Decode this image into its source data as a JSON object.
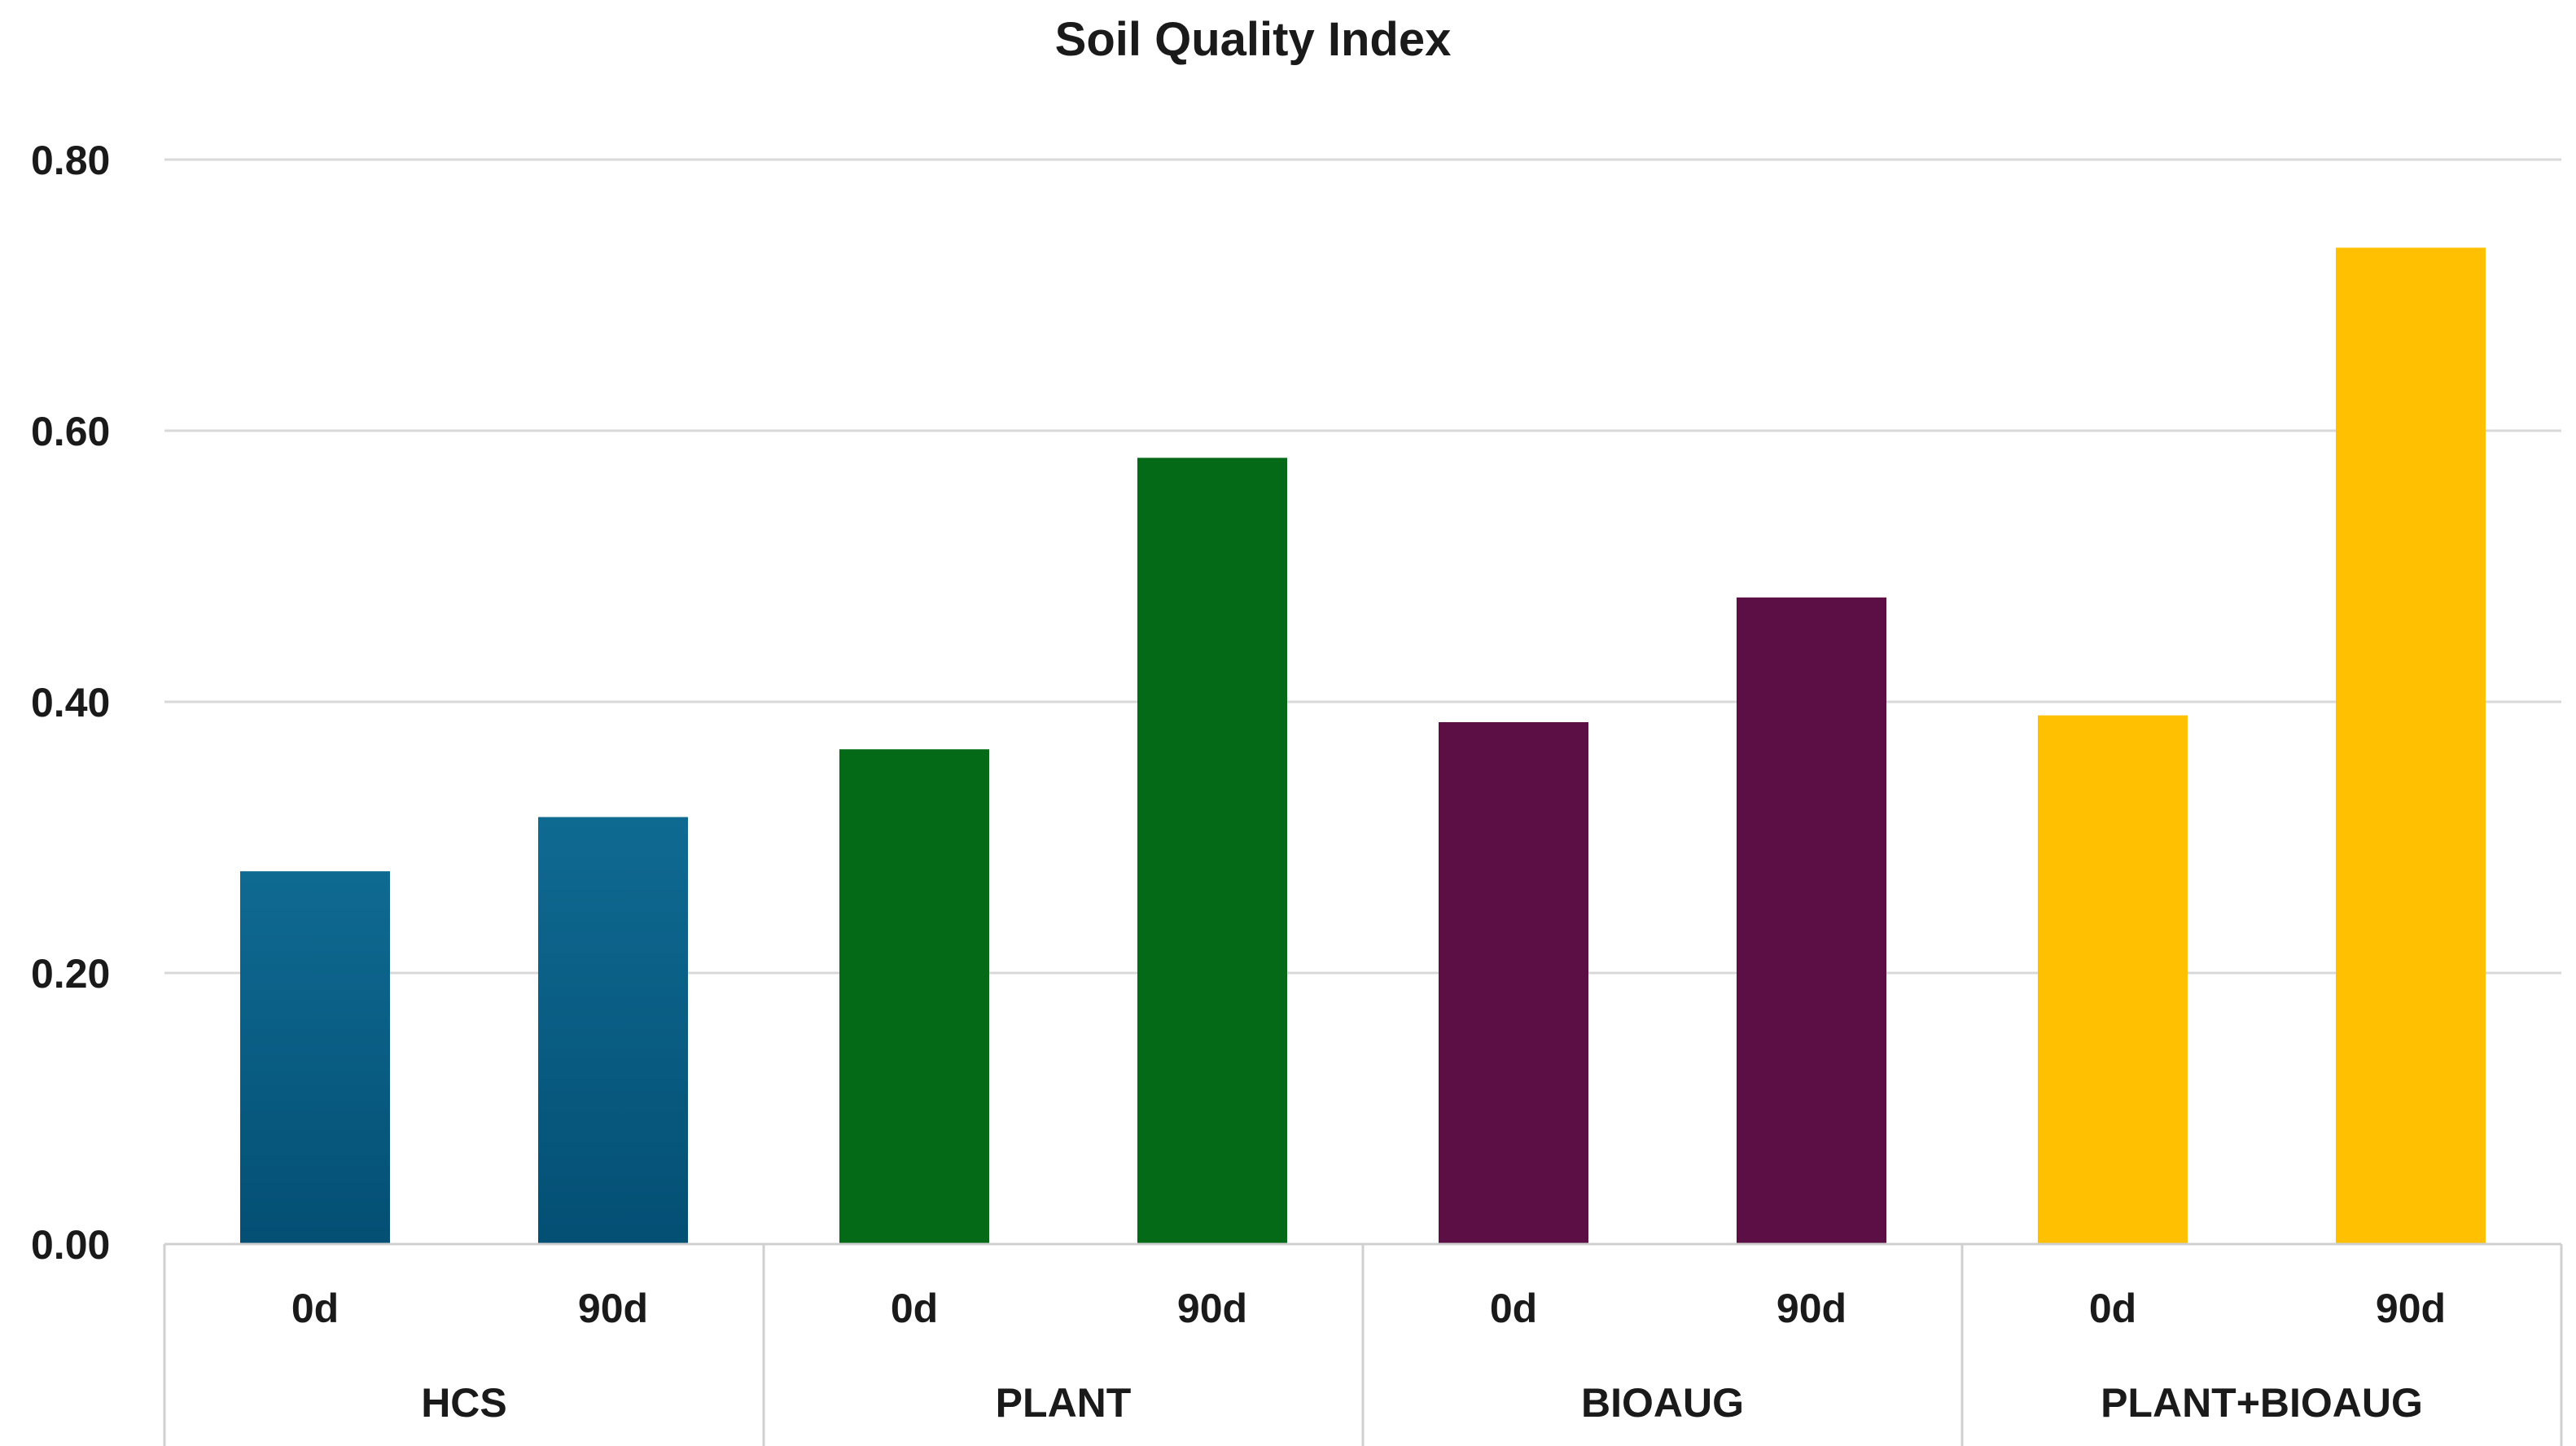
{
  "chart_data": {
    "type": "bar",
    "title": "Soil Quality Index",
    "xlabel": "",
    "ylabel": "",
    "ylim": [
      0,
      0.8
    ],
    "yticks": [
      "0.00",
      "0.20",
      "0.40",
      "0.60",
      "0.80"
    ],
    "grid": true,
    "legend": "none",
    "groups": [
      {
        "name": "HCS",
        "color": "#0f6a92",
        "color_dark": "#044f74",
        "bars": [
          {
            "label": "0d",
            "value": 0.275
          },
          {
            "label": "90d",
            "value": 0.315
          }
        ]
      },
      {
        "name": "PLANT",
        "color": "#046a17",
        "color_dark": "#046a17",
        "bars": [
          {
            "label": "0d",
            "value": 0.365
          },
          {
            "label": "90d",
            "value": 0.58
          }
        ]
      },
      {
        "name": "BIOAUG",
        "color": "#5c0f45",
        "color_dark": "#5c0f45",
        "bars": [
          {
            "label": "0d",
            "value": 0.385
          },
          {
            "label": "90d",
            "value": 0.477
          }
        ]
      },
      {
        "name": "PLANT+BIOAUG",
        "color": "#fec000",
        "color_dark": "#fec000",
        "bars": [
          {
            "label": "0d",
            "value": 0.39
          },
          {
            "label": "90d",
            "value": 0.735
          }
        ]
      }
    ]
  }
}
